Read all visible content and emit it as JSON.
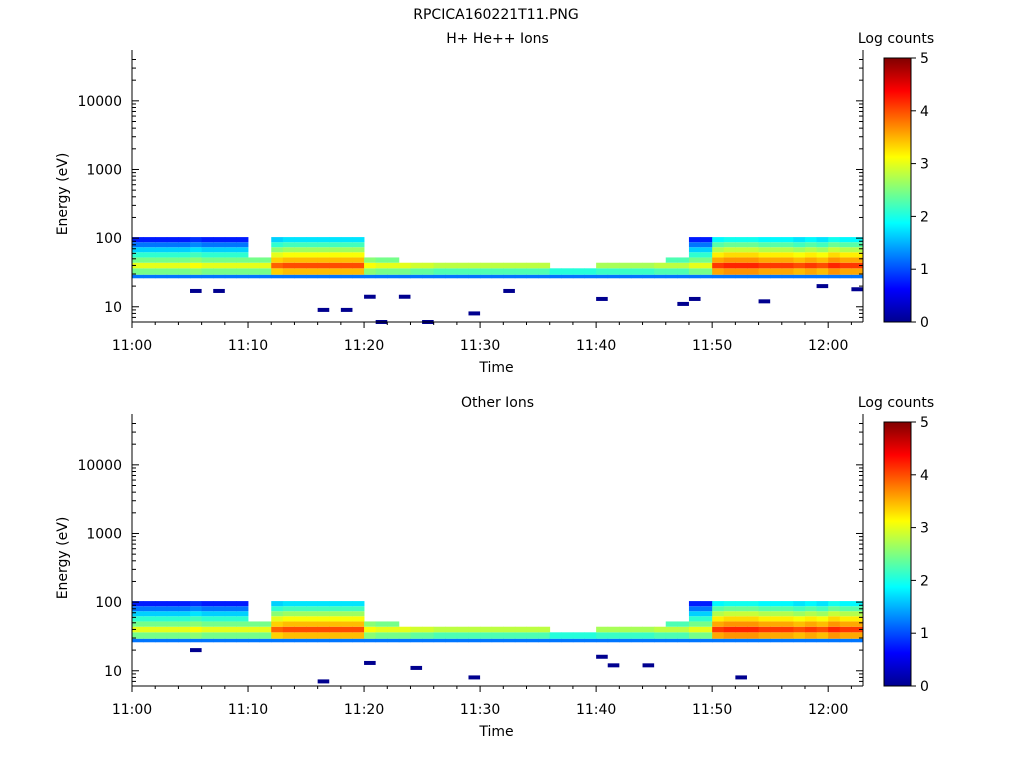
{
  "figure_title": "RPCICA160221T11.PNG",
  "chart_data": [
    {
      "type": "heatmap",
      "title": "H+ He++ Ions",
      "xlabel": "Time",
      "ylabel": "Energy (eV)",
      "x_ticks": [
        "11:00",
        "11:10",
        "11:20",
        "11:30",
        "11:40",
        "11:50",
        "12:00"
      ],
      "y_ticks": [
        "10",
        "100",
        "1000",
        "10000"
      ],
      "y_scale": "log",
      "ylim": [
        6,
        45000
      ],
      "xlim": [
        "11:00",
        "12:03"
      ],
      "colorbar": {
        "label": "Log counts",
        "ticks": [
          "0",
          "1",
          "2",
          "3",
          "4",
          "5"
        ],
        "range": [
          0,
          5
        ],
        "colormap": "jet"
      },
      "time_columns": [
        "11:00",
        "11:01",
        "11:02",
        "11:03",
        "11:04",
        "11:05",
        "11:06",
        "11:07",
        "11:08",
        "11:09",
        "11:10",
        "11:11",
        "11:12",
        "11:13",
        "11:14",
        "11:15",
        "11:16",
        "11:17",
        "11:18",
        "11:19",
        "11:20",
        "11:21",
        "11:22",
        "11:23",
        "11:24",
        "11:25",
        "11:26",
        "11:27",
        "11:28",
        "11:29",
        "11:30",
        "11:31",
        "11:32",
        "11:33",
        "11:34",
        "11:35",
        "11:36",
        "11:37",
        "11:38",
        "11:39",
        "11:40",
        "11:41",
        "11:42",
        "11:43",
        "11:44",
        "11:45",
        "11:46",
        "11:47",
        "11:48",
        "11:49",
        "11:50",
        "11:51",
        "11:52",
        "11:53",
        "11:54",
        "11:55",
        "11:56",
        "11:57",
        "11:58",
        "11:59",
        "12:00",
        "12:01",
        "12:02"
      ],
      "energy_bins_eV": [
        26,
        33,
        40,
        48,
        57,
        68,
        80,
        95
      ],
      "band": {
        "peak_log_counts": [
          3.0,
          3.0,
          3.0,
          3.0,
          3.0,
          3.1,
          3.0,
          3.0,
          3.0,
          3.0,
          3.0,
          3.0,
          3.9,
          4.0,
          4.0,
          4.0,
          4.0,
          4.0,
          4.0,
          4.0,
          3.1,
          3.0,
          3.0,
          3.0,
          2.9,
          2.9,
          2.8,
          2.8,
          2.8,
          2.8,
          2.8,
          2.8,
          2.8,
          2.8,
          2.8,
          2.8,
          2.6,
          2.6,
          2.6,
          2.6,
          2.7,
          2.7,
          2.7,
          2.7,
          2.7,
          2.8,
          2.8,
          2.8,
          3.0,
          3.0,
          4.1,
          4.2,
          4.2,
          4.2,
          4.1,
          4.1,
          4.1,
          4.0,
          4.1,
          4.0,
          4.2,
          4.1,
          4.1
        ],
        "upper_extent_bins": [
          7,
          7,
          7,
          7,
          7,
          7,
          7,
          7,
          7,
          7,
          3,
          3,
          7,
          7,
          7,
          7,
          7,
          7,
          7,
          7,
          3,
          3,
          3,
          2,
          2,
          2,
          2,
          2,
          2,
          2,
          2,
          2,
          2,
          2,
          2,
          2,
          1,
          1,
          1,
          1,
          2,
          2,
          2,
          2,
          2,
          2,
          3,
          3,
          7,
          7,
          7,
          7,
          7,
          7,
          7,
          7,
          7,
          7,
          7,
          7,
          7,
          7,
          7
        ]
      },
      "sparse_pixels": [
        {
          "t": "11:05",
          "e": 17
        },
        {
          "t": "11:07",
          "e": 17
        },
        {
          "t": "11:16",
          "e": 9
        },
        {
          "t": "11:18",
          "e": 9
        },
        {
          "t": "11:20",
          "e": 14
        },
        {
          "t": "11:21",
          "e": 6
        },
        {
          "t": "11:23",
          "e": 14
        },
        {
          "t": "11:25",
          "e": 6
        },
        {
          "t": "11:29",
          "e": 8
        },
        {
          "t": "11:32",
          "e": 17
        },
        {
          "t": "11:40",
          "e": 13
        },
        {
          "t": "11:47",
          "e": 11
        },
        {
          "t": "11:48",
          "e": 13
        },
        {
          "t": "11:54",
          "e": 12
        },
        {
          "t": "11:59",
          "e": 20
        },
        {
          "t": "12:02",
          "e": 18
        }
      ]
    },
    {
      "type": "heatmap",
      "title": "Other Ions",
      "xlabel": "Time",
      "ylabel": "Energy (eV)",
      "x_ticks": [
        "11:00",
        "11:10",
        "11:20",
        "11:30",
        "11:40",
        "11:50",
        "12:00"
      ],
      "y_ticks": [
        "10",
        "100",
        "1000",
        "10000"
      ],
      "y_scale": "log",
      "ylim": [
        6,
        45000
      ],
      "xlim": [
        "11:00",
        "12:03"
      ],
      "colorbar": {
        "label": "Log counts",
        "ticks": [
          "0",
          "1",
          "2",
          "3",
          "4",
          "5"
        ],
        "range": [
          0,
          5
        ],
        "colormap": "jet"
      },
      "time_columns": [
        "11:00",
        "11:01",
        "11:02",
        "11:03",
        "11:04",
        "11:05",
        "11:06",
        "11:07",
        "11:08",
        "11:09",
        "11:10",
        "11:11",
        "11:12",
        "11:13",
        "11:14",
        "11:15",
        "11:16",
        "11:17",
        "11:18",
        "11:19",
        "11:20",
        "11:21",
        "11:22",
        "11:23",
        "11:24",
        "11:25",
        "11:26",
        "11:27",
        "11:28",
        "11:29",
        "11:30",
        "11:31",
        "11:32",
        "11:33",
        "11:34",
        "11:35",
        "11:36",
        "11:37",
        "11:38",
        "11:39",
        "11:40",
        "11:41",
        "11:42",
        "11:43",
        "11:44",
        "11:45",
        "11:46",
        "11:47",
        "11:48",
        "11:49",
        "11:50",
        "11:51",
        "11:52",
        "11:53",
        "11:54",
        "11:55",
        "11:56",
        "11:57",
        "11:58",
        "11:59",
        "12:00",
        "12:01",
        "12:02"
      ],
      "energy_bins_eV": [
        26,
        33,
        40,
        48,
        57,
        68,
        80,
        95
      ],
      "band": {
        "peak_log_counts": [
          3.0,
          3.0,
          3.0,
          3.0,
          3.0,
          3.1,
          3.0,
          3.0,
          3.0,
          3.0,
          3.0,
          3.0,
          3.9,
          4.0,
          4.0,
          4.0,
          4.0,
          4.0,
          4.0,
          4.0,
          3.1,
          3.0,
          3.0,
          3.0,
          2.9,
          2.9,
          2.8,
          2.8,
          2.8,
          2.8,
          2.8,
          2.8,
          2.8,
          2.8,
          2.8,
          2.8,
          2.6,
          2.6,
          2.6,
          2.6,
          2.7,
          2.7,
          2.7,
          2.7,
          2.7,
          2.8,
          2.8,
          2.8,
          3.0,
          3.0,
          4.1,
          4.2,
          4.2,
          4.2,
          4.1,
          4.1,
          4.1,
          4.0,
          4.1,
          4.0,
          4.2,
          4.1,
          4.1
        ],
        "upper_extent_bins": [
          7,
          7,
          7,
          7,
          7,
          7,
          7,
          7,
          7,
          7,
          3,
          3,
          7,
          7,
          7,
          7,
          7,
          7,
          7,
          7,
          3,
          3,
          3,
          2,
          2,
          2,
          2,
          2,
          2,
          2,
          2,
          2,
          2,
          2,
          2,
          2,
          1,
          1,
          1,
          1,
          2,
          2,
          2,
          2,
          2,
          2,
          3,
          3,
          7,
          7,
          7,
          7,
          7,
          7,
          7,
          7,
          7,
          7,
          7,
          7,
          7,
          7,
          7
        ]
      },
      "sparse_pixels": [
        {
          "t": "11:05",
          "e": 20
        },
        {
          "t": "11:16",
          "e": 7
        },
        {
          "t": "11:20",
          "e": 13
        },
        {
          "t": "11:24",
          "e": 11
        },
        {
          "t": "11:29",
          "e": 8
        },
        {
          "t": "11:40",
          "e": 16
        },
        {
          "t": "11:41",
          "e": 12
        },
        {
          "t": "11:44",
          "e": 12
        },
        {
          "t": "11:52",
          "e": 8
        }
      ]
    }
  ]
}
